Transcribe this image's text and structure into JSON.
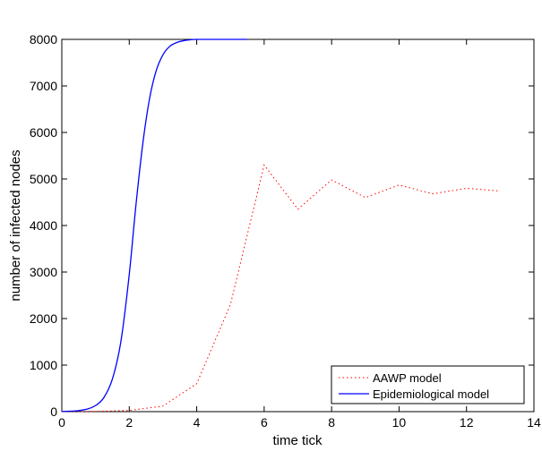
{
  "chart_data": {
    "type": "line",
    "title": "",
    "xlabel": "time tick",
    "ylabel": "number of infected nodes",
    "xlim": [
      0,
      14
    ],
    "ylim": [
      0,
      8000
    ],
    "xticks": [
      0,
      2,
      4,
      6,
      8,
      10,
      12,
      14
    ],
    "yticks": [
      0,
      1000,
      2000,
      3000,
      4000,
      5000,
      6000,
      7000,
      8000
    ],
    "grid": false,
    "legend_position": "bottom-right",
    "series": [
      {
        "name": "AAWP model",
        "color": "#ff0000",
        "style": "dotted",
        "x": [
          0,
          1,
          2,
          3,
          4,
          5,
          6,
          7,
          8,
          9,
          10,
          11,
          12,
          13
        ],
        "y": [
          0,
          5,
          25,
          120,
          600,
          2300,
          5300,
          4350,
          4980,
          4600,
          4870,
          4680,
          4800,
          4740
        ]
      },
      {
        "name": "Epidemiological model",
        "color": "#0000ff",
        "style": "solid",
        "x": [
          0,
          0.5,
          1,
          1.25,
          1.5,
          1.75,
          2,
          2.2,
          2.4,
          2.6,
          2.8,
          3,
          3.2,
          3.4,
          3.6,
          3.8,
          4,
          4.5,
          5,
          5.5
        ],
        "y": [
          5,
          22,
          130,
          305,
          700,
          1500,
          2950,
          4450,
          5750,
          6720,
          7330,
          7670,
          7850,
          7930,
          7970,
          7990,
          8000,
          8000,
          8000,
          8000
        ]
      }
    ]
  }
}
